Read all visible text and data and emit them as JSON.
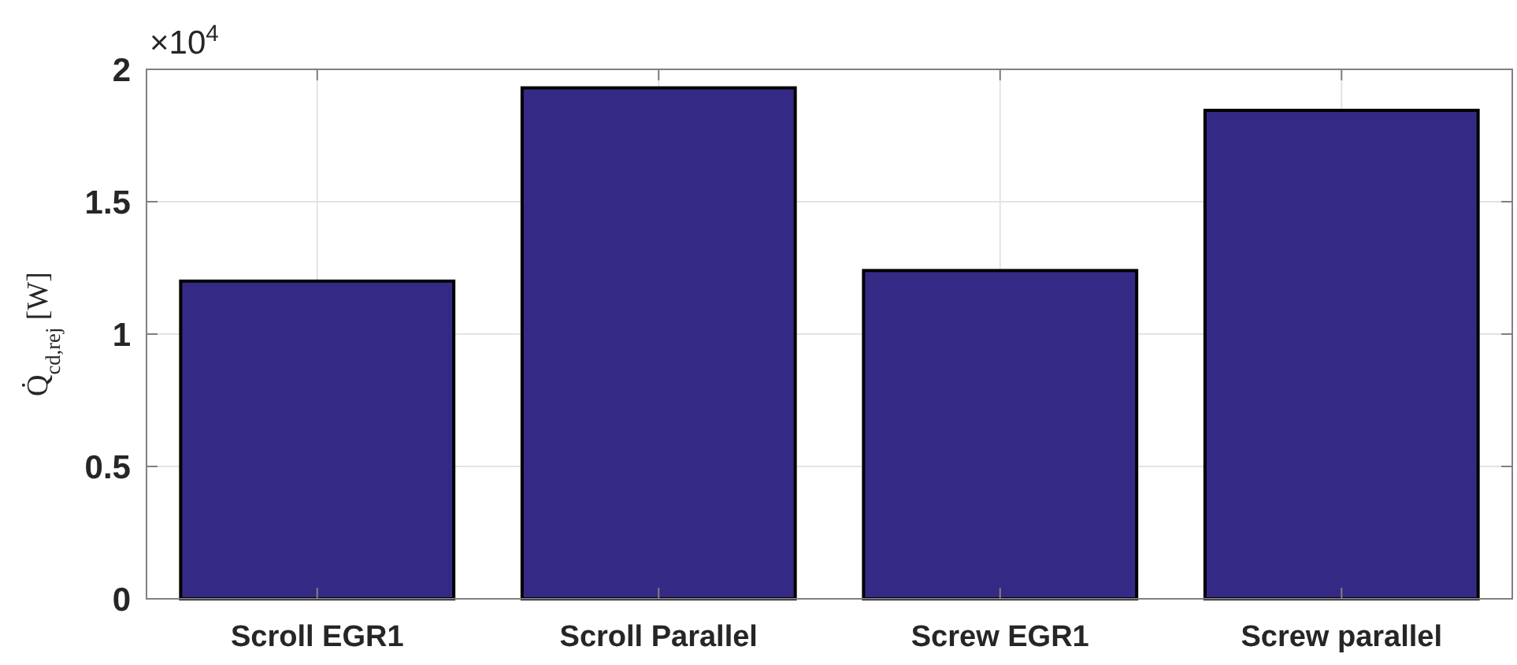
{
  "chart_data": {
    "type": "bar",
    "ylabel": "Q̇$_{cd,rej}$ [W]",
    "categories": [
      "Scroll EGR1",
      "Scroll Parallel",
      "Screw EGR1",
      "Screw parallel"
    ],
    "values": [
      1.2,
      1.93,
      1.24,
      1.845
    ],
    "color": "#342a85",
    "ylim": [
      0,
      2
    ],
    "yticks": [
      0,
      0.5,
      1,
      1.5,
      2
    ],
    "annotations": [
      "×10$^{4}$"
    ],
    "grid": true
  }
}
